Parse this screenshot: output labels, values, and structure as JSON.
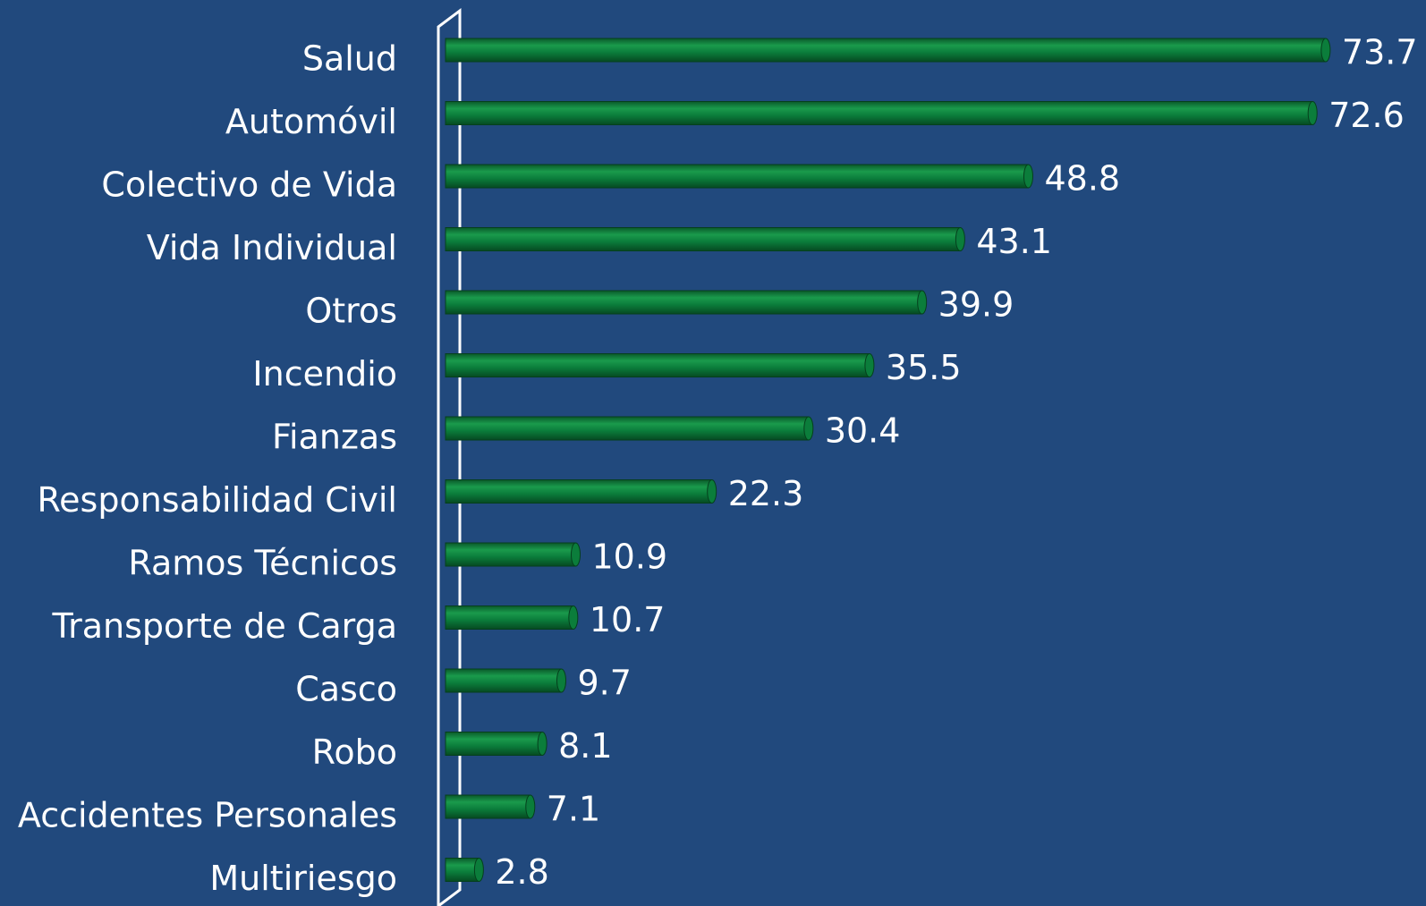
{
  "chart_data": {
    "type": "bar",
    "orientation": "horizontal",
    "categories": [
      "Salud",
      "Automóvil",
      "Colectivo de Vida",
      "Vida Individual",
      "Otros",
      "Incendio",
      "Fianzas",
      "Responsabilidad Civil",
      "Ramos Técnicos",
      "Transporte de Carga",
      "Casco",
      "Robo",
      "Accidentes Personales",
      "Multiriesgo"
    ],
    "values": [
      73.7,
      72.6,
      48.8,
      43.1,
      39.9,
      35.5,
      30.4,
      22.3,
      10.9,
      10.7,
      9.7,
      8.1,
      7.1,
      2.8
    ],
    "color": "#0b7d3b",
    "xlim": [
      0,
      80
    ]
  }
}
